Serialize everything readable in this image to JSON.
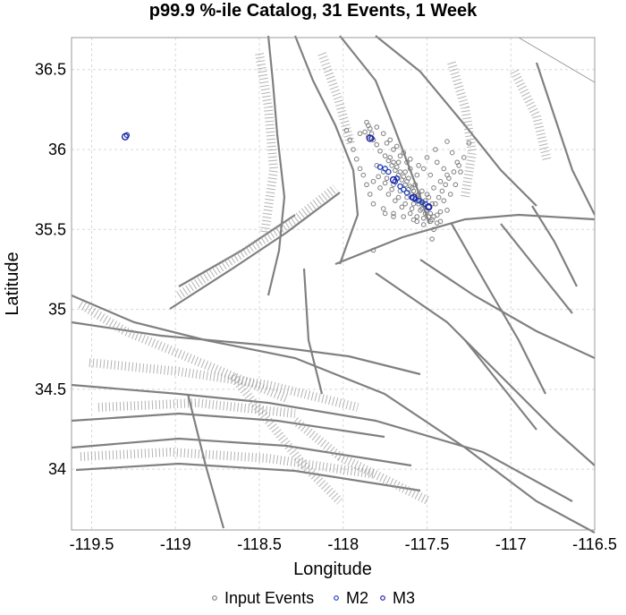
{
  "chart_data": {
    "type": "scatter",
    "title": "p99.9 %-ile Catalog, 31 Events, 1 Week",
    "xlabel": "Longitude",
    "ylabel": "Latitude",
    "xlim": [
      -119.62,
      -116.5
    ],
    "ylim": [
      33.62,
      36.7
    ],
    "x_ticks": [
      -119.5,
      -119,
      -118.5,
      -118,
      -117.5,
      -117,
      -116.5
    ],
    "x_tick_labels": [
      "-119.5",
      "-119",
      "-118.5",
      "-118",
      "-117.5",
      "-117",
      "-116.5"
    ],
    "y_ticks": [
      34,
      34.5,
      35,
      35.5,
      36,
      36.5
    ],
    "y_tick_labels": [
      "34",
      "34.5",
      "35",
      "35.5",
      "36",
      "36.5"
    ],
    "grid": true,
    "legend": "bottom-center",
    "colors": {
      "input_events": "#7f7f7f",
      "m2": "#1f3fbf",
      "m3": "#2020a0",
      "faults": "#808080",
      "grid": "#d8d8d8"
    },
    "series": [
      {
        "name": "Input Events",
        "points": [
          [
            -117.86,
            36.17
          ],
          [
            -117.85,
            36.15
          ],
          [
            -117.84,
            36.13
          ],
          [
            -117.87,
            36.11
          ],
          [
            -117.83,
            36.1
          ],
          [
            -117.85,
            36.08
          ],
          [
            -117.82,
            36.06
          ],
          [
            -117.8,
            36.03
          ],
          [
            -117.78,
            35.99
          ],
          [
            -117.75,
            35.96
          ],
          [
            -117.73,
            35.93
          ],
          [
            -117.71,
            35.9
          ],
          [
            -117.69,
            35.87
          ],
          [
            -117.67,
            35.84
          ],
          [
            -117.65,
            35.81
          ],
          [
            -117.63,
            35.78
          ],
          [
            -117.61,
            35.75
          ],
          [
            -117.59,
            35.72
          ],
          [
            -117.57,
            35.69
          ],
          [
            -117.55,
            35.66
          ],
          [
            -117.53,
            35.63
          ],
          [
            -117.51,
            35.6
          ],
          [
            -117.49,
            35.58
          ],
          [
            -117.47,
            35.56
          ],
          [
            -117.72,
            35.95
          ],
          [
            -117.7,
            35.92
          ],
          [
            -117.68,
            35.89
          ],
          [
            -117.66,
            35.86
          ],
          [
            -117.64,
            35.83
          ],
          [
            -117.62,
            35.8
          ],
          [
            -117.6,
            35.77
          ],
          [
            -117.58,
            35.74
          ],
          [
            -117.56,
            35.71
          ],
          [
            -117.54,
            35.68
          ],
          [
            -117.52,
            35.65
          ],
          [
            -117.5,
            35.62
          ],
          [
            -117.48,
            35.6
          ],
          [
            -117.46,
            35.58
          ],
          [
            -117.44,
            35.59
          ],
          [
            -117.42,
            35.61
          ],
          [
            -117.8,
            35.9
          ],
          [
            -117.76,
            35.86
          ],
          [
            -117.74,
            35.82
          ],
          [
            -117.7,
            35.78
          ],
          [
            -117.66,
            35.74
          ],
          [
            -117.62,
            35.7
          ],
          [
            -117.58,
            35.66
          ],
          [
            -117.54,
            35.62
          ],
          [
            -117.5,
            35.72
          ],
          [
            -117.46,
            35.76
          ],
          [
            -117.42,
            35.8
          ],
          [
            -117.48,
            35.84
          ],
          [
            -117.52,
            35.88
          ],
          [
            -117.44,
            35.92
          ],
          [
            -117.4,
            35.88
          ],
          [
            -117.38,
            35.84
          ],
          [
            -117.6,
            35.94
          ],
          [
            -117.64,
            35.98
          ],
          [
            -117.68,
            36.02
          ],
          [
            -117.72,
            36.06
          ],
          [
            -117.76,
            36.1
          ],
          [
            -117.55,
            35.9
          ],
          [
            -117.5,
            35.95
          ],
          [
            -117.45,
            36.0
          ],
          [
            -117.38,
            36.05
          ],
          [
            -117.35,
            35.98
          ],
          [
            -117.32,
            35.92
          ],
          [
            -117.3,
            35.86
          ],
          [
            -117.33,
            35.78
          ],
          [
            -117.36,
            35.72
          ],
          [
            -117.4,
            35.68
          ],
          [
            -117.38,
            35.62
          ],
          [
            -117.42,
            35.55
          ],
          [
            -117.46,
            35.5
          ],
          [
            -117.52,
            35.53
          ],
          [
            -117.58,
            35.56
          ],
          [
            -117.64,
            35.58
          ],
          [
            -117.7,
            35.6
          ],
          [
            -117.76,
            35.63
          ],
          [
            -117.82,
            35.66
          ],
          [
            -117.84,
            35.72
          ],
          [
            -117.86,
            35.78
          ],
          [
            -117.88,
            35.84
          ],
          [
            -117.9,
            35.88
          ],
          [
            -117.92,
            35.94
          ],
          [
            -117.94,
            36.0
          ],
          [
            -117.96,
            36.06
          ],
          [
            -117.98,
            36.12
          ],
          [
            -117.6,
            35.6
          ],
          [
            -117.56,
            35.58
          ],
          [
            -117.52,
            35.57
          ],
          [
            -117.48,
            35.55
          ],
          [
            -117.44,
            35.54
          ],
          [
            -117.65,
            35.64
          ],
          [
            -117.69,
            35.68
          ],
          [
            -117.73,
            35.72
          ],
          [
            -117.78,
            35.76
          ],
          [
            -117.82,
            35.8
          ],
          [
            -117.56,
            35.84
          ],
          [
            -117.6,
            35.88
          ],
          [
            -117.62,
            35.92
          ],
          [
            -117.66,
            35.96
          ],
          [
            -117.7,
            36.0
          ],
          [
            -117.74,
            36.04
          ],
          [
            -117.45,
            35.66
          ],
          [
            -117.43,
            35.7
          ],
          [
            -117.41,
            35.74
          ],
          [
            -117.39,
            35.78
          ],
          [
            -117.37,
            35.82
          ],
          [
            -117.34,
            35.86
          ],
          [
            -117.31,
            35.9
          ],
          [
            -117.28,
            35.95
          ],
          [
            -117.82,
            35.37
          ],
          [
            -117.47,
            35.44
          ],
          [
            -117.25,
            36.04
          ],
          [
            -117.7,
            35.58
          ],
          [
            -117.75,
            35.6
          ],
          [
            -117.56,
            35.55
          ],
          [
            -117.9,
            36.1
          ],
          [
            -117.8,
            36.14
          ],
          [
            -117.63,
            35.66
          ],
          [
            -117.59,
            35.63
          ],
          [
            -117.67,
            35.7
          ],
          [
            -117.71,
            35.75
          ],
          [
            -117.75,
            35.79
          ],
          [
            -117.79,
            35.83
          ],
          [
            -117.61,
            35.82
          ],
          [
            -117.57,
            35.78
          ],
          [
            -117.53,
            35.74
          ],
          [
            -117.49,
            35.7
          ],
          [
            -117.47,
            35.66
          ],
          [
            -117.51,
            35.68
          ],
          [
            -117.55,
            35.72
          ],
          [
            -117.59,
            35.76
          ],
          [
            -117.63,
            35.86
          ],
          [
            -117.67,
            35.92
          ]
        ]
      },
      {
        "name": "M2",
        "points": [
          [
            -119.29,
            36.09
          ],
          [
            -117.83,
            36.07
          ],
          [
            -117.78,
            35.89
          ],
          [
            -117.73,
            35.86
          ],
          [
            -117.69,
            35.8
          ],
          [
            -117.66,
            35.77
          ],
          [
            -117.59,
            35.7
          ],
          [
            -117.53,
            35.67
          ],
          [
            -117.49,
            35.64
          ],
          [
            -117.64,
            35.75
          ],
          [
            -117.57,
            35.69
          ],
          [
            -117.51,
            35.66
          ],
          [
            -117.75,
            35.88
          ],
          [
            -117.68,
            35.82
          ],
          [
            -117.62,
            35.73
          ],
          [
            -117.55,
            35.68
          ]
        ]
      },
      {
        "name": "M3",
        "points": [
          [
            -119.3,
            36.08
          ],
          [
            -117.84,
            36.07
          ],
          [
            -117.7,
            35.81
          ],
          [
            -117.58,
            35.7
          ],
          [
            -117.49,
            35.64
          ]
        ]
      }
    ],
    "legend_entries": [
      "Input Events",
      "M2",
      "M3"
    ]
  }
}
